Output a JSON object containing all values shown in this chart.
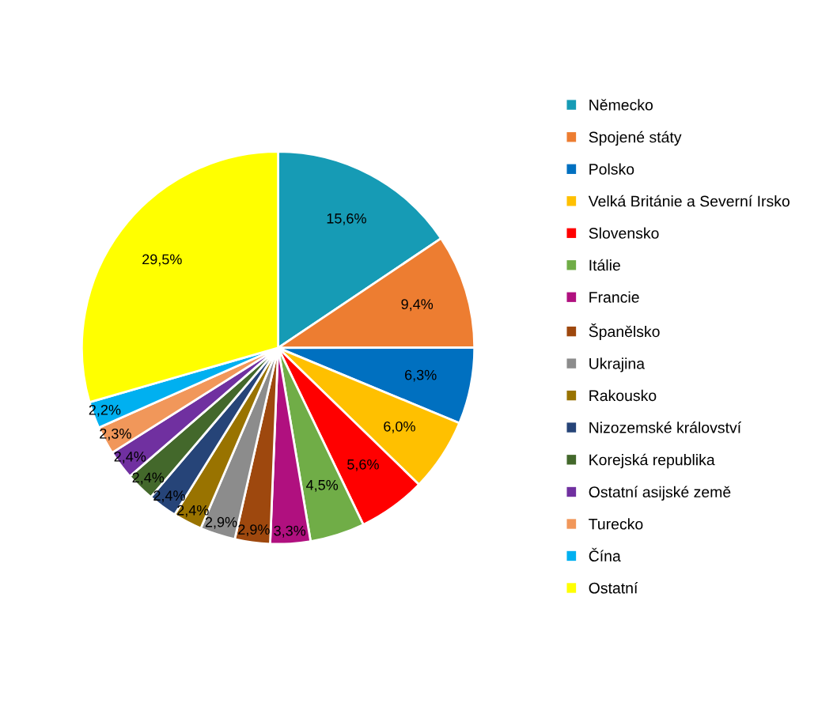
{
  "chart_data": {
    "type": "pie",
    "categories": [
      "Německo",
      "Spojené státy",
      "Polsko",
      "Velká Británie a Severní Irsko",
      "Slovensko",
      "Itálie",
      "Francie",
      "Španělsko",
      "Ukrajina",
      "Rakousko",
      "Nizozemské království",
      "Korejská republika",
      "Ostatní asijské země",
      "Turecko",
      "Čína",
      "Ostatní"
    ],
    "values": [
      15.6,
      9.4,
      6.3,
      6.0,
      5.6,
      4.5,
      3.3,
      2.9,
      2.9,
      2.4,
      2.4,
      2.4,
      2.4,
      2.3,
      2.2,
      29.5
    ],
    "value_labels": [
      "15,6%",
      "9,4%",
      "6,3%",
      "6,0%",
      "5,6%",
      "4,5%",
      "3,3%",
      "2,9%",
      "2,9%",
      "2,4%",
      "2,4%",
      "2,4%",
      "2,4%",
      "2,3%",
      "2,2%",
      "29,5%"
    ],
    "colors": [
      "#169bb5",
      "#ed7d31",
      "#0070c0",
      "#ffc000",
      "#ff0000",
      "#70ad47",
      "#b0107f",
      "#9e480e",
      "#8c8c8c",
      "#997300",
      "#264478",
      "#43682b",
      "#7030a0",
      "#f1975a",
      "#00b0f0",
      "#ffff00"
    ],
    "legend": "right"
  }
}
